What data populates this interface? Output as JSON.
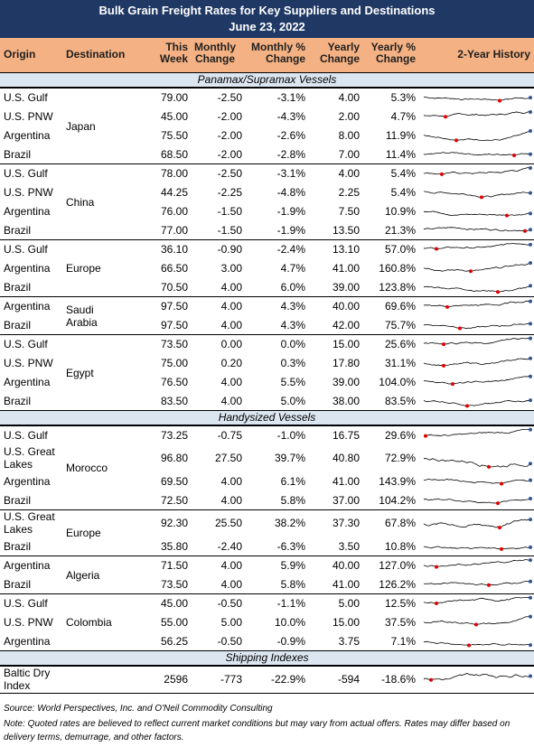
{
  "header": {
    "title": "Bulk Grain Freight Rates for Key Suppliers and Destinations",
    "date": "June 23, 2022",
    "columns": [
      "Origin",
      "Destination",
      "This Week",
      "Monthly Change",
      "Monthly % Change",
      "Yearly Change",
      "Yearly % Change",
      "2-Year History"
    ]
  },
  "sections": [
    {
      "title": "Panamax/Supramax Vessels",
      "groups": [
        {
          "destination": "Japan",
          "rows": [
            {
              "origin": "U.S. Gulf",
              "values": [
                "79.00",
                "-2.50",
                "-3.1%",
                "4.00",
                "5.3%"
              ]
            },
            {
              "origin": "U.S. PNW",
              "values": [
                "45.00",
                "-2.00",
                "-4.3%",
                "2.00",
                "4.7%"
              ]
            },
            {
              "origin": "Argentina",
              "values": [
                "75.50",
                "-2.00",
                "-2.6%",
                "8.00",
                "11.9%"
              ]
            },
            {
              "origin": "Brazil",
              "values": [
                "68.50",
                "-2.00",
                "-2.8%",
                "7.00",
                "11.4%"
              ]
            }
          ]
        },
        {
          "destination": "China",
          "rows": [
            {
              "origin": "U.S. Gulf",
              "values": [
                "78.00",
                "-2.50",
                "-3.1%",
                "4.00",
                "5.4%"
              ]
            },
            {
              "origin": "U.S. PNW",
              "values": [
                "44.25",
                "-2.25",
                "-4.8%",
                "2.25",
                "5.4%"
              ]
            },
            {
              "origin": "Argentina",
              "values": [
                "76.00",
                "-1.50",
                "-1.9%",
                "7.50",
                "10.9%"
              ]
            },
            {
              "origin": "Brazil",
              "values": [
                "77.00",
                "-1.50",
                "-1.9%",
                "13.50",
                "21.3%"
              ]
            }
          ]
        },
        {
          "destination": "Europe",
          "rows": [
            {
              "origin": "U.S. Gulf",
              "values": [
                "36.10",
                "-0.90",
                "-2.4%",
                "13.10",
                "57.0%"
              ]
            },
            {
              "origin": "Argentina",
              "values": [
                "66.50",
                "3.00",
                "4.7%",
                "41.00",
                "160.8%"
              ]
            },
            {
              "origin": "Brazil",
              "values": [
                "70.50",
                "4.00",
                "6.0%",
                "39.00",
                "123.8%"
              ]
            }
          ]
        },
        {
          "destination": "Saudi Arabia",
          "rows": [
            {
              "origin": "Argentina",
              "values": [
                "97.50",
                "4.00",
                "4.3%",
                "40.00",
                "69.6%"
              ]
            },
            {
              "origin": "Brazil",
              "values": [
                "97.50",
                "4.00",
                "4.3%",
                "42.00",
                "75.7%"
              ]
            }
          ]
        },
        {
          "destination": "Egypt",
          "rows": [
            {
              "origin": "U.S. Gulf",
              "values": [
                "73.50",
                "0.00",
                "0.0%",
                "15.00",
                "25.6%"
              ]
            },
            {
              "origin": "U.S. PNW",
              "values": [
                "75.00",
                "0.20",
                "0.3%",
                "17.80",
                "31.1%"
              ]
            },
            {
              "origin": "Argentina",
              "values": [
                "76.50",
                "4.00",
                "5.5%",
                "39.00",
                "104.0%"
              ]
            },
            {
              "origin": "Brazil",
              "values": [
                "83.50",
                "4.00",
                "5.0%",
                "38.00",
                "83.5%"
              ]
            }
          ]
        }
      ]
    },
    {
      "title": "Handysized Vessels",
      "groups": [
        {
          "destination": "Morocco",
          "rows": [
            {
              "origin": "U.S. Gulf",
              "values": [
                "73.25",
                "-0.75",
                "-1.0%",
                "16.75",
                "29.6%"
              ]
            },
            {
              "origin": "U.S. Great Lakes",
              "values": [
                "96.80",
                "27.50",
                "39.7%",
                "40.80",
                "72.9%"
              ]
            },
            {
              "origin": "Argentina",
              "values": [
                "69.50",
                "4.00",
                "6.1%",
                "41.00",
                "143.9%"
              ]
            },
            {
              "origin": "Brazil",
              "values": [
                "72.50",
                "4.00",
                "5.8%",
                "37.00",
                "104.2%"
              ]
            }
          ]
        },
        {
          "destination": "Europe",
          "rows": [
            {
              "origin": "U.S. Great Lakes",
              "values": [
                "92.30",
                "25.50",
                "38.2%",
                "37.30",
                "67.8%"
              ]
            },
            {
              "origin": "Brazil",
              "values": [
                "35.80",
                "-2.40",
                "-6.3%",
                "3.50",
                "10.8%"
              ]
            }
          ]
        },
        {
          "destination": "Algeria",
          "rows": [
            {
              "origin": "Argentina",
              "values": [
                "71.50",
                "4.00",
                "5.9%",
                "40.00",
                "127.0%"
              ]
            },
            {
              "origin": "Brazil",
              "values": [
                "73.50",
                "4.00",
                "5.8%",
                "41.00",
                "126.2%"
              ]
            }
          ]
        },
        {
          "destination": "Colombia",
          "rows": [
            {
              "origin": "U.S. Gulf",
              "values": [
                "45.00",
                "-0.50",
                "-1.1%",
                "5.00",
                "12.5%"
              ]
            },
            {
              "origin": "U.S. PNW",
              "values": [
                "55.00",
                "5.00",
                "10.0%",
                "15.00",
                "37.5%"
              ]
            },
            {
              "origin": "Argentina",
              "values": [
                "56.25",
                "-0.50",
                "-0.9%",
                "3.75",
                "7.1%"
              ]
            }
          ]
        }
      ]
    },
    {
      "title": "Shipping Indexes",
      "groups": [
        {
          "rows": [
            {
              "origin": "Baltic Dry Index",
              "values": [
                "2596",
                "-773",
                "-22.9%",
                "-594",
                "-18.6%"
              ]
            }
          ]
        }
      ]
    }
  ],
  "footer": {
    "source": "Source: World Perspectives, Inc. and O'Neil Commodity Consulting",
    "note": "Note: Quoted rates are believed to reflect current market conditions but may vary from actual offers. Rates may differ based on delivery terms, demurrage, and other factors."
  }
}
